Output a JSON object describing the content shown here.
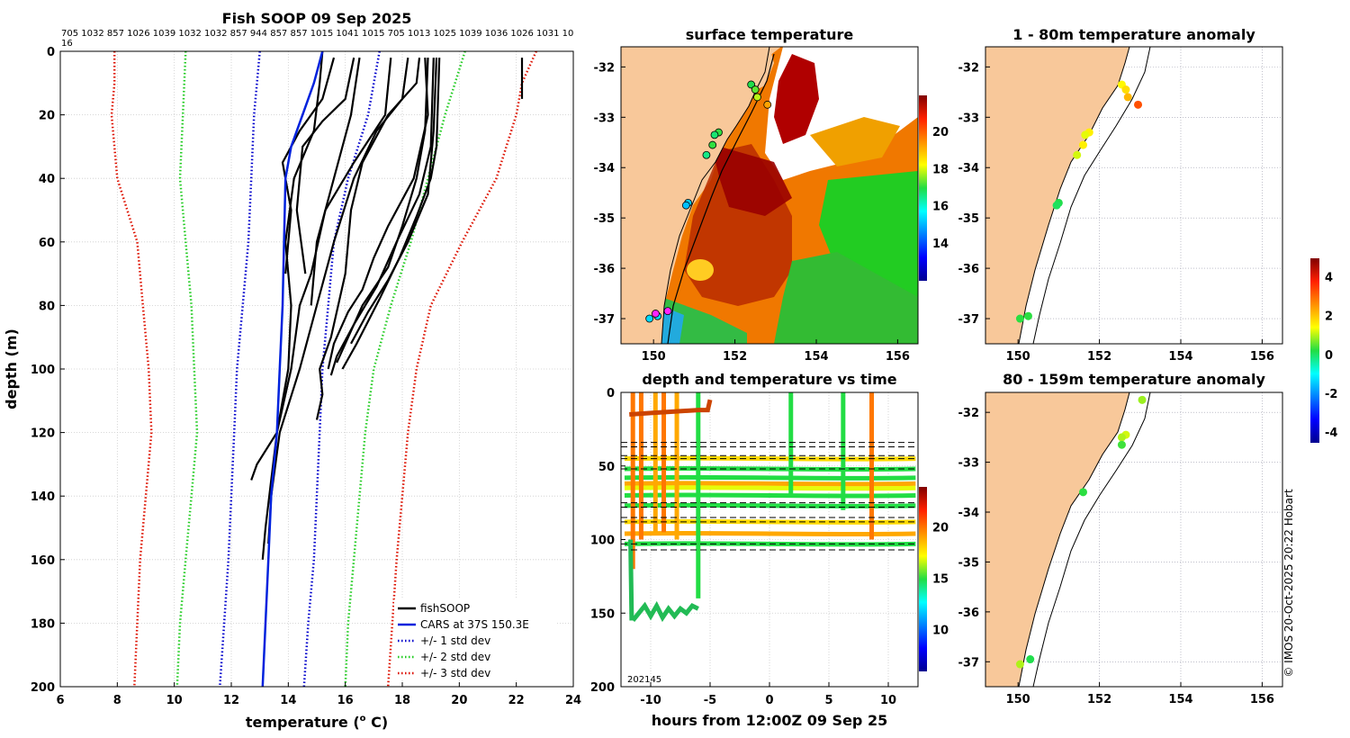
{
  "colors": {
    "soop": "#000000",
    "cars": "#0022dd",
    "std1": "#0000cc",
    "std2": "#22cc22",
    "std3": "#dd1100",
    "land": "#f8c89a",
    "grid": "#cccccc"
  },
  "chart_data": [
    {
      "id": "profile",
      "type": "line",
      "title": "Fish SOOP 09 Sep 2025",
      "xlabel": "temperature (",
      "xlabel_sup": "o",
      "xlabel_end": " C)",
      "ylabel": "depth (m)",
      "xlim": [
        6,
        24
      ],
      "ylim": [
        200,
        0
      ],
      "xticks": [
        "6",
        "8",
        "10",
        "12",
        "14",
        "16",
        "18",
        "20",
        "22",
        "24"
      ],
      "yticks": [
        "0",
        "20",
        "40",
        "60",
        "80",
        "100",
        "120",
        "140",
        "160",
        "180",
        "200"
      ],
      "top_ids": "705 1032 857 1026 1039 1032 1032 857 944 857 857 1015 1041 1015 705 1013 1025 1039 1036 1026 1031 10",
      "top_ids_wrap": "16",
      "legend": [
        {
          "label": "fishSOOP",
          "color": "#000000",
          "style": "solid"
        },
        {
          "label": "CARS at 37S 150.3E",
          "color": "#0022dd",
          "style": "solid"
        },
        {
          "label": "+/- 1 std dev",
          "color": "#0000cc",
          "style": "dotted"
        },
        {
          "label": "+/- 2 std dev",
          "color": "#22cc22",
          "style": "dotted"
        },
        {
          "label": "+/- 3 std dev",
          "color": "#dd1100",
          "style": "dotted"
        }
      ],
      "series": {
        "cars": [
          [
            15.2,
            0
          ],
          [
            14.9,
            10
          ],
          [
            14.5,
            20
          ],
          [
            14.1,
            30
          ],
          [
            13.9,
            40
          ],
          [
            13.85,
            60
          ],
          [
            13.8,
            80
          ],
          [
            13.7,
            100
          ],
          [
            13.6,
            120
          ],
          [
            13.4,
            140
          ],
          [
            13.3,
            160
          ],
          [
            13.2,
            180
          ],
          [
            13.1,
            200
          ]
        ],
        "std1_lo": [
          [
            13.0,
            0
          ],
          [
            12.8,
            20
          ],
          [
            12.7,
            40
          ],
          [
            12.6,
            60
          ],
          [
            12.4,
            80
          ],
          [
            12.2,
            100
          ],
          [
            12.1,
            120
          ],
          [
            12.0,
            140
          ],
          [
            11.9,
            160
          ],
          [
            11.75,
            180
          ],
          [
            11.6,
            200
          ]
        ],
        "std1_hi": [
          [
            17.2,
            0
          ],
          [
            16.8,
            20
          ],
          [
            16.1,
            40
          ],
          [
            15.6,
            60
          ],
          [
            15.4,
            80
          ],
          [
            15.2,
            100
          ],
          [
            15.1,
            120
          ],
          [
            15.0,
            140
          ],
          [
            14.9,
            160
          ],
          [
            14.7,
            180
          ],
          [
            14.55,
            200
          ]
        ],
        "std2_lo": [
          [
            10.4,
            0
          ],
          [
            10.3,
            20
          ],
          [
            10.2,
            40
          ],
          [
            10.4,
            60
          ],
          [
            10.6,
            80
          ],
          [
            10.7,
            100
          ],
          [
            10.8,
            120
          ],
          [
            10.6,
            140
          ],
          [
            10.4,
            160
          ],
          [
            10.2,
            180
          ],
          [
            10.1,
            200
          ]
        ],
        "std2_hi": [
          [
            20.2,
            0
          ],
          [
            19.5,
            20
          ],
          [
            18.9,
            40
          ],
          [
            18.3,
            60
          ],
          [
            17.6,
            80
          ],
          [
            17.0,
            100
          ],
          [
            16.7,
            120
          ],
          [
            16.5,
            140
          ],
          [
            16.3,
            160
          ],
          [
            16.1,
            180
          ],
          [
            16.0,
            200
          ]
        ],
        "std3_lo": [
          [
            7.9,
            0
          ],
          [
            7.9,
            10
          ],
          [
            7.8,
            20
          ],
          [
            8.0,
            40
          ],
          [
            8.7,
            60
          ],
          [
            8.9,
            80
          ],
          [
            9.1,
            100
          ],
          [
            9.2,
            120
          ],
          [
            9.0,
            140
          ],
          [
            8.8,
            160
          ],
          [
            8.7,
            180
          ],
          [
            8.6,
            200
          ]
        ],
        "std3_hi": [
          [
            22.7,
            0
          ],
          [
            22.2,
            10
          ],
          [
            22.0,
            20
          ],
          [
            21.3,
            40
          ],
          [
            20.1,
            60
          ],
          [
            19.0,
            80
          ],
          [
            18.5,
            100
          ],
          [
            18.2,
            120
          ],
          [
            18.0,
            140
          ],
          [
            17.8,
            160
          ],
          [
            17.65,
            180
          ],
          [
            17.5,
            200
          ]
        ],
        "soop": [
          [
            [
              15.2,
              0
            ],
            [
              15.1,
              10
            ],
            [
              14.9,
              25
            ],
            [
              14.2,
              40
            ],
            [
              13.9,
              60
            ],
            [
              14.1,
              80
            ],
            [
              14.0,
              100
            ],
            [
              13.6,
              120
            ],
            [
              12.9,
              130
            ],
            [
              12.7,
              135
            ]
          ],
          [
            [
              15.6,
              2
            ],
            [
              15.2,
              15
            ],
            [
              14.4,
              25
            ],
            [
              13.8,
              35
            ],
            [
              14.1,
              50
            ],
            [
              13.9,
              70
            ]
          ],
          [
            [
              16.3,
              2
            ],
            [
              16.0,
              15
            ],
            [
              15.2,
              22
            ],
            [
              14.5,
              30
            ],
            [
              14.3,
              50
            ],
            [
              14.6,
              70
            ]
          ],
          [
            [
              16.5,
              2
            ],
            [
              16.2,
              20
            ],
            [
              15.6,
              40
            ],
            [
              15.0,
              60
            ],
            [
              14.8,
              80
            ]
          ],
          [
            [
              17.6,
              2
            ],
            [
              17.4,
              20
            ],
            [
              16.3,
              35
            ],
            [
              15.3,
              50
            ],
            [
              14.8,
              70
            ],
            [
              14.4,
              80
            ],
            [
              14.1,
              100
            ],
            [
              13.6,
              120
            ],
            [
              13.4,
              135
            ],
            [
              13.2,
              150
            ],
            [
              13.1,
              160
            ]
          ],
          [
            [
              18.2,
              2
            ],
            [
              18.0,
              15
            ],
            [
              17.1,
              25
            ],
            [
              16.3,
              40
            ],
            [
              15.6,
              60
            ],
            [
              15.0,
              80
            ],
            [
              14.4,
              100
            ],
            [
              13.7,
              120
            ],
            [
              13.4,
              140
            ],
            [
              13.3,
              155
            ]
          ],
          [
            [
              18.6,
              2
            ],
            [
              18.5,
              10
            ],
            [
              17.5,
              20
            ],
            [
              16.6,
              35
            ],
            [
              16.2,
              50
            ],
            [
              16.0,
              70
            ],
            [
              15.5,
              90
            ],
            [
              15.1,
              100
            ],
            [
              15.2,
              108
            ],
            [
              15.0,
              116
            ]
          ],
          [
            [
              18.8,
              2
            ],
            [
              18.9,
              20
            ],
            [
              18.4,
              40
            ],
            [
              17.5,
              55
            ],
            [
              17.0,
              65
            ],
            [
              16.6,
              75
            ],
            [
              16.1,
              82
            ],
            [
              15.6,
              92
            ],
            [
              15.4,
              100
            ]
          ],
          [
            [
              18.9,
              2
            ],
            [
              18.8,
              25
            ],
            [
              18.5,
              40
            ],
            [
              18.0,
              55
            ],
            [
              17.5,
              68
            ],
            [
              16.6,
              80
            ],
            [
              16.0,
              92
            ],
            [
              15.7,
              98
            ]
          ],
          [
            [
              19.1,
              2
            ],
            [
              19.0,
              30
            ],
            [
              18.6,
              45
            ],
            [
              17.8,
              60
            ],
            [
              17.1,
              74
            ],
            [
              16.3,
              86
            ],
            [
              15.7,
              96
            ],
            [
              15.5,
              102
            ]
          ],
          [
            [
              19.2,
              2
            ],
            [
              19.1,
              25
            ],
            [
              18.9,
              45
            ],
            [
              18.2,
              60
            ],
            [
              17.5,
              72
            ],
            [
              16.8,
              82
            ],
            [
              16.2,
              92
            ]
          ],
          [
            [
              19.3,
              2
            ],
            [
              19.2,
              30
            ],
            [
              19.0,
              40
            ],
            [
              18.5,
              52
            ],
            [
              17.9,
              65
            ],
            [
              17.2,
              78
            ],
            [
              16.4,
              92
            ],
            [
              15.9,
              100
            ]
          ],
          [
            [
              22.2,
              2
            ],
            [
              22.2,
              15
            ]
          ]
        ]
      }
    },
    {
      "id": "surface",
      "type": "heatmap",
      "title": "surface temperature",
      "xticks": [
        "150",
        "152",
        "154",
        "156"
      ],
      "yticks": [
        "-32",
        "-33",
        "-34",
        "-35",
        "-36",
        "-37"
      ],
      "xlim": [
        149.2,
        156.5
      ],
      "ylim": [
        -37.5,
        -31.6
      ],
      "colorbar_ticks": [
        "14",
        "16",
        "18",
        "20"
      ],
      "colorbar_range": [
        12,
        22
      ]
    },
    {
      "id": "depthtime",
      "type": "scatter",
      "title": "depth and temperature vs time",
      "xlabel": "hours from 12:00Z 09 Sep 25",
      "xticks": [
        "-10",
        "-5",
        "0",
        "5",
        "10"
      ],
      "yticks": [
        "0",
        "50",
        "100",
        "150",
        "200"
      ],
      "xlim": [
        -12.5,
        12.5
      ],
      "ylim": [
        200,
        0
      ],
      "colorbar_ticks": [
        "10",
        "15",
        "20"
      ],
      "colorbar_range": [
        6,
        24
      ],
      "corner_label": "202145",
      "dashed_depths": [
        34,
        37,
        43,
        45,
        52,
        75,
        78,
        85,
        88,
        103,
        107
      ],
      "horizontal_tracks": [
        {
          "depth": 45,
          "temp": 18
        },
        {
          "depth": 52,
          "temp": 15
        },
        {
          "depth": 58,
          "temp": 15
        },
        {
          "depth": 62,
          "temp": 19
        },
        {
          "depth": 65,
          "temp": 17
        },
        {
          "depth": 70,
          "temp": 15
        },
        {
          "depth": 77,
          "temp": 15
        },
        {
          "depth": 88,
          "temp": 18
        },
        {
          "depth": 96,
          "temp": 19
        },
        {
          "depth": 103,
          "temp": 15
        }
      ],
      "vertical_casts": [
        {
          "t": -11.5,
          "from": 0,
          "to": 120,
          "temp": 20
        },
        {
          "t": -10.8,
          "from": 0,
          "to": 100,
          "temp": 20
        },
        {
          "t": -9.6,
          "from": 0,
          "to": 95,
          "temp": 19
        },
        {
          "t": -8.9,
          "from": 0,
          "to": 95,
          "temp": 20
        },
        {
          "t": -7.8,
          "from": 0,
          "to": 100,
          "temp": 19
        },
        {
          "t": -6.0,
          "from": 0,
          "to": 140,
          "temp": 15
        },
        {
          "t": 1.8,
          "from": 0,
          "to": 70,
          "temp": 15
        },
        {
          "t": 6.2,
          "from": 0,
          "to": 80,
          "temp": 15
        },
        {
          "t": 8.6,
          "from": 0,
          "to": 100,
          "temp": 20
        }
      ],
      "deep_trace": [
        [
          -11.5,
          155
        ],
        [
          -11.0,
          150
        ],
        [
          -10.5,
          145
        ],
        [
          -10.0,
          152
        ],
        [
          -9.5,
          145
        ],
        [
          -9.0,
          153
        ],
        [
          -8.5,
          147
        ],
        [
          -8.0,
          152
        ],
        [
          -7.5,
          147
        ],
        [
          -7.0,
          150
        ],
        [
          -6.5,
          145
        ],
        [
          -6.0,
          147
        ]
      ],
      "surface_trace": [
        [
          -11.8,
          15
        ],
        [
          -10.0,
          14
        ],
        [
          -8.0,
          13
        ],
        [
          -6.0,
          12
        ],
        [
          -5.2,
          12
        ],
        [
          -5.0,
          5
        ]
      ]
    },
    {
      "id": "anom1",
      "type": "scatter",
      "title": "1 - 80m temperature anomaly",
      "xticks": [
        "150",
        "152",
        "154",
        "156"
      ],
      "yticks": [
        "-32",
        "-33",
        "-34",
        "-35",
        "-36",
        "-37"
      ],
      "xlim": [
        149.2,
        156.5
      ],
      "ylim": [
        -37.5,
        -31.6
      ],
      "points": [
        [
          152.55,
          -32.35,
          1.5
        ],
        [
          152.65,
          -32.45,
          1.8
        ],
        [
          152.7,
          -32.6,
          2.2
        ],
        [
          152.95,
          -32.75,
          3.3
        ],
        [
          151.75,
          -33.3,
          1.6
        ],
        [
          151.65,
          -33.35,
          1.3
        ],
        [
          151.6,
          -33.55,
          1.6
        ],
        [
          151.45,
          -33.75,
          1.2
        ],
        [
          151.0,
          -34.7,
          0.2
        ],
        [
          150.95,
          -34.75,
          0.1
        ],
        [
          150.25,
          -36.95,
          0.3
        ],
        [
          150.05,
          -37.0,
          0.3
        ]
      ]
    },
    {
      "id": "anom2",
      "type": "scatter",
      "title": "80 - 159m temperature anomaly",
      "xticks": [
        "150",
        "152",
        "154",
        "156"
      ],
      "yticks": [
        "-32",
        "-33",
        "-34",
        "-35",
        "-36",
        "-37"
      ],
      "xlim": [
        149.2,
        156.5
      ],
      "ylim": [
        -37.5,
        -31.6
      ],
      "points": [
        [
          153.05,
          -31.75,
          0.9
        ],
        [
          152.65,
          -32.45,
          1.2
        ],
        [
          152.55,
          -32.5,
          1.0
        ],
        [
          152.55,
          -32.65,
          0.4
        ],
        [
          151.6,
          -33.6,
          0.3
        ],
        [
          150.3,
          -36.95,
          0.2
        ],
        [
          150.05,
          -37.05,
          1.0
        ]
      ]
    },
    {
      "id": "anom_cbar",
      "type": "colorbar",
      "ticks": [
        "4",
        "2",
        "0",
        "-2",
        "-4"
      ],
      "range": [
        -4.5,
        5
      ]
    }
  ],
  "credit": "© IMOS 20-Oct-2025 20:22 Hobart"
}
